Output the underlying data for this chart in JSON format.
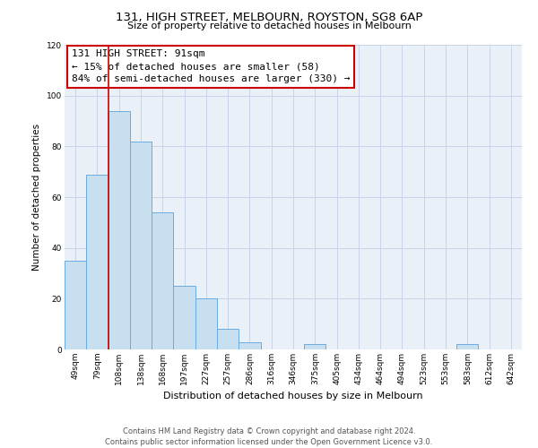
{
  "title": "131, HIGH STREET, MELBOURN, ROYSTON, SG8 6AP",
  "subtitle": "Size of property relative to detached houses in Melbourn",
  "xlabel": "Distribution of detached houses by size in Melbourn",
  "ylabel": "Number of detached properties",
  "bar_labels": [
    "49sqm",
    "79sqm",
    "108sqm",
    "138sqm",
    "168sqm",
    "197sqm",
    "227sqm",
    "257sqm",
    "286sqm",
    "316sqm",
    "346sqm",
    "375sqm",
    "405sqm",
    "434sqm",
    "464sqm",
    "494sqm",
    "523sqm",
    "553sqm",
    "583sqm",
    "612sqm",
    "642sqm"
  ],
  "bar_values": [
    35,
    69,
    94,
    82,
    54,
    25,
    20,
    8,
    3,
    0,
    0,
    2,
    0,
    0,
    0,
    0,
    0,
    0,
    2,
    0,
    0
  ],
  "bar_color": "#c8dff0",
  "bar_edge_color": "#6aabe0",
  "ylim": [
    0,
    120
  ],
  "yticks": [
    0,
    20,
    40,
    60,
    80,
    100,
    120
  ],
  "property_line_label": "131 HIGH STREET: 91sqm",
  "annotation_line1": "← 15% of detached houses are smaller (58)",
  "annotation_line2": "84% of semi-detached houses are larger (330) →",
  "footer_line1": "Contains HM Land Registry data © Crown copyright and database right 2024.",
  "footer_line2": "Contains public sector information licensed under the Open Government Licence v3.0.",
  "bg_color": "#ffffff",
  "grid_color": "#c8d4e8",
  "annotation_rect_color": "#cc0000",
  "property_line_color": "#cc0000",
  "title_fontsize": 9.5,
  "subtitle_fontsize": 8.0,
  "xlabel_fontsize": 8.0,
  "ylabel_fontsize": 7.5,
  "tick_fontsize": 6.5,
  "annot_fontsize": 8.0,
  "footer_fontsize": 6.0
}
